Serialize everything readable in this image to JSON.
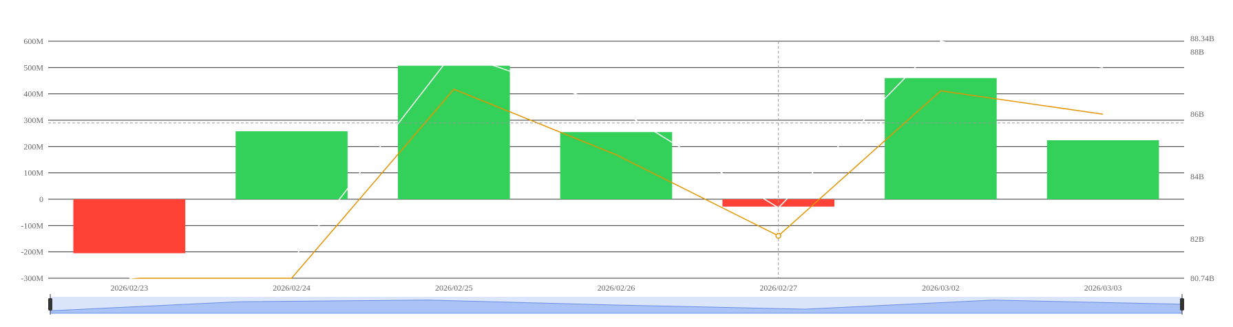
{
  "chart_data": {
    "type": "bar",
    "categories": [
      "2026/02/23",
      "2026/02/24",
      "2026/02/25",
      "2026/02/26",
      "2026/02/27",
      "2026/03/02",
      "2026/03/03"
    ],
    "left_axis": {
      "min": -300000000,
      "max": 600000000,
      "ticks": [
        -300000000,
        -200000000,
        -100000000,
        0,
        100000000,
        200000000,
        300000000,
        400000000,
        500000000,
        600000000
      ],
      "tick_labels": [
        "-300M",
        "-200M",
        "-100M",
        "0",
        "100M",
        "200M",
        "300M",
        "400M",
        "500M",
        "600M"
      ]
    },
    "right_axis": {
      "min": 80.74,
      "max": 88.34,
      "tick_values": [
        80.74,
        82,
        84,
        86,
        88,
        88.34
      ],
      "tick_labels": [
        "80.74B",
        "82B",
        "84B",
        "86B",
        "88B",
        "88.34B"
      ]
    },
    "series": [
      {
        "type": "bar",
        "axis": "left",
        "values": [
          -205000000,
          258000000,
          507000000,
          255000000,
          -28000000,
          460000000,
          224000000
        ],
        "positive_color": "#33d15a",
        "negative_color": "#ff4136"
      },
      {
        "type": "line",
        "axis": "right",
        "color": "#e39400",
        "values": [
          80.74,
          80.74,
          86.8,
          84.7,
          82.1,
          86.75,
          86.0
        ]
      },
      {
        "type": "line",
        "axis": "right",
        "color": "#ffffff",
        "values": [
          80.74,
          81.3,
          88.0,
          86.2,
          83.0,
          88.34,
          87.5
        ]
      }
    ],
    "reference_line_left": 290000000,
    "crosshair_category": "2026/02/27",
    "grid": true,
    "brush_profile": [
      0.85,
      0.3,
      0.2,
      0.5,
      0.75,
      0.2,
      0.45
    ]
  }
}
